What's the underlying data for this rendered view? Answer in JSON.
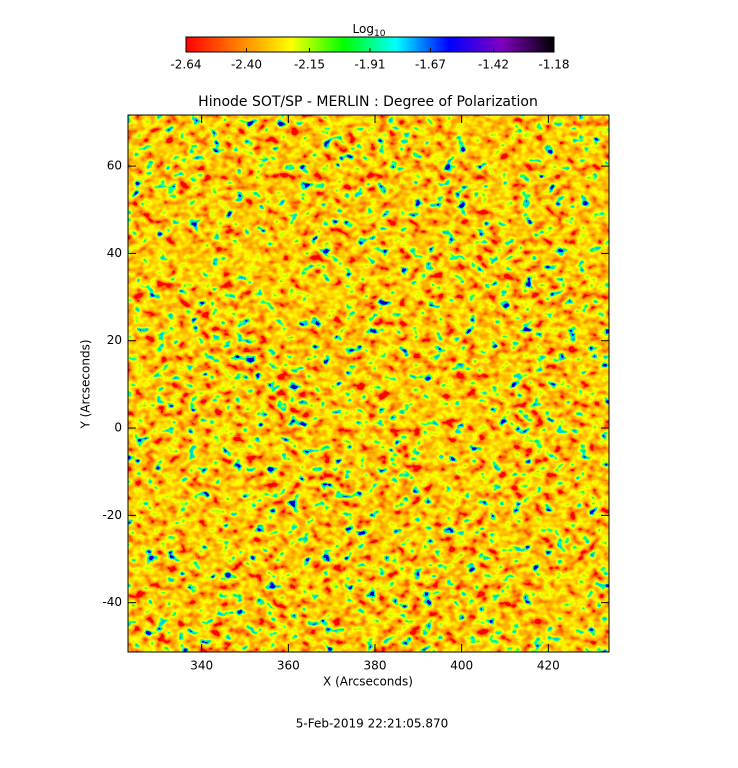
{
  "chart_data": {
    "type": "heatmap",
    "title": "Hinode SOT/SP - MERLIN : Degree of Polarization",
    "x_label": "X (Arcseconds)",
    "y_label": "Y (Arcseconds)",
    "xlim": [
      323,
      434
    ],
    "xticks": [
      340,
      360,
      380,
      400,
      420
    ],
    "ylim": [
      -51.3,
      71.7
    ],
    "yticks": [
      -40,
      -20,
      0,
      20,
      40,
      60
    ],
    "colorbar": {
      "label": "Log",
      "label_sub": "10",
      "lim": [
        -2.64,
        -1.18
      ],
      "ticks": [
        -2.64,
        {
          "value": -2.4,
          "label": "-2.40"
        },
        -2.15,
        -1.91,
        -1.67,
        -1.42,
        -1.18
      ],
      "colors": [
        "#ff0000",
        "#ff8000",
        "#ffff00",
        "#00ff00",
        "#00ffff",
        "#0000ff",
        "#8000c0",
        "#000000"
      ]
    },
    "footer": "5-Feb-2019 22:21:05.870"
  }
}
